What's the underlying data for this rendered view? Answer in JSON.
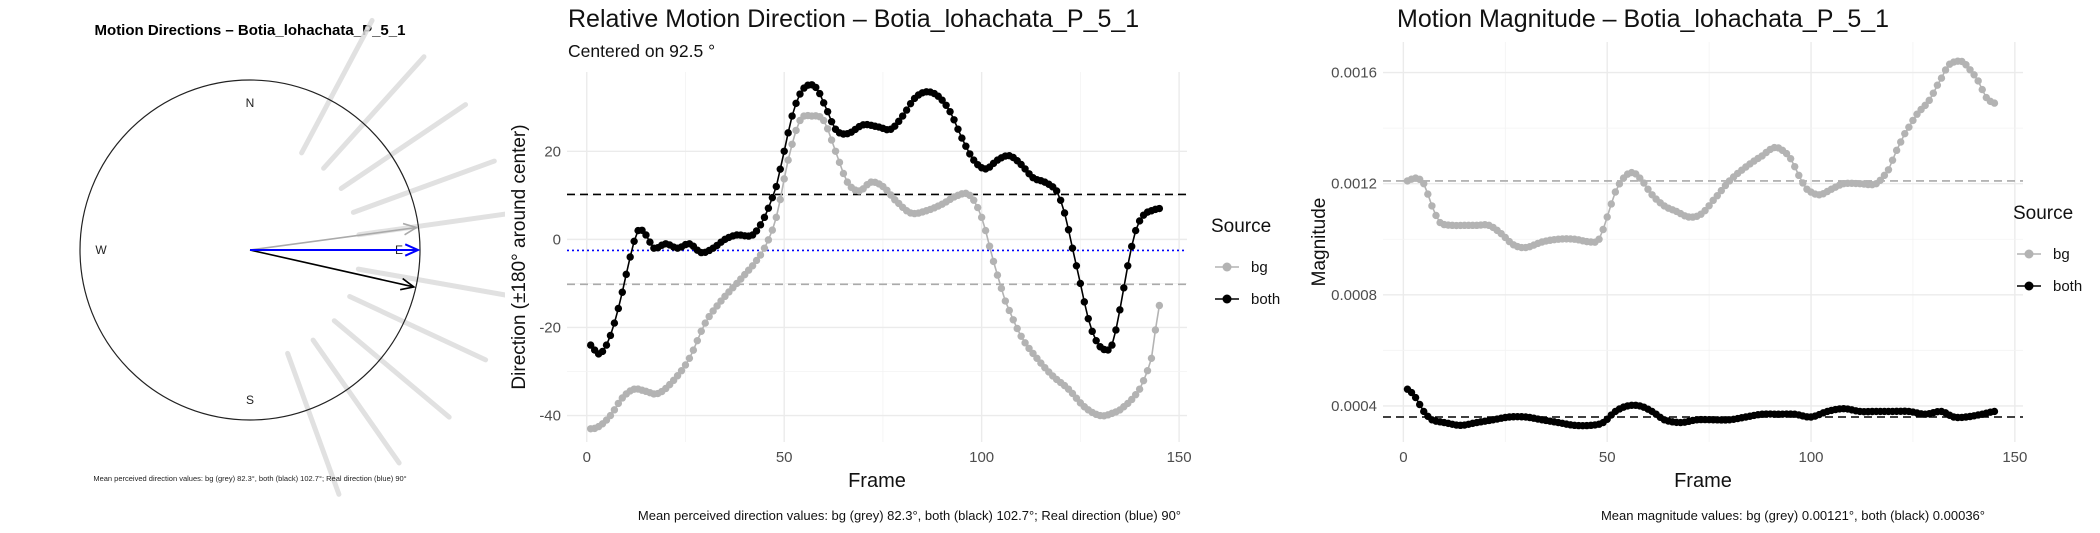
{
  "chart_data": [
    {
      "type": "compass",
      "title": "Motion Directions – Botia_lohachata_P_5_1",
      "labels": {
        "north": "N",
        "south": "S",
        "east": "E",
        "west": "W"
      },
      "caption": "Mean perceived direction values: bg (grey) 82.3°, both (black) 102.7°; Real direction (blue) 90°",
      "arrows": [
        {
          "name": "bg",
          "direction_deg": 82.3,
          "color": "#aaaaaa"
        },
        {
          "name": "both",
          "direction_deg": 102.7,
          "color": "#000000"
        },
        {
          "name": "real",
          "direction_deg": 90,
          "color": "#0000ff"
        }
      ],
      "faint_rays_deg": [
        28,
        42,
        56,
        70,
        82,
        100,
        115,
        130,
        145,
        160
      ]
    },
    {
      "type": "scatter",
      "title": "Relative Motion Direction – Botia_lohachata_P_5_1",
      "subtitle": "Centered on  92.5 °",
      "xlabel": "Frame",
      "ylabel": "Direction (±180° around center)",
      "xlim": [
        -5,
        152
      ],
      "ylim": [
        -46,
        38
      ],
      "xticks": [
        0,
        50,
        100,
        150
      ],
      "yticks": [
        -40,
        -20,
        0,
        20
      ],
      "legend": {
        "title": "Source",
        "position": "right",
        "entries": [
          "bg",
          "both"
        ]
      },
      "caption": "Mean perceived direction values: bg (grey) 82.3°, both (black) 102.7°; Real direction (blue) 90°",
      "hlines": [
        {
          "y": 10.2,
          "color": "#000000",
          "style": "dashed"
        },
        {
          "y": -2.5,
          "color": "#0000ff",
          "style": "dotted"
        },
        {
          "y": -10.2,
          "color": "#aaaaaa",
          "style": "dashed"
        }
      ],
      "series": [
        {
          "name": "bg",
          "color": "#b3b3b3",
          "keypoints": [
            [
              1,
              -43
            ],
            [
              3,
              -42.5
            ],
            [
              6,
              -40
            ],
            [
              9,
              -36
            ],
            [
              12,
              -34
            ],
            [
              15,
              -34.5
            ],
            [
              18,
              -35
            ],
            [
              22,
              -32
            ],
            [
              26,
              -27
            ],
            [
              30,
              -19
            ],
            [
              34,
              -14
            ],
            [
              38,
              -10
            ],
            [
              42,
              -6
            ],
            [
              45,
              -2
            ],
            [
              48,
              5
            ],
            [
              51,
              18
            ],
            [
              54,
              27
            ],
            [
              57,
              28
            ],
            [
              60,
              27
            ],
            [
              63,
              20
            ],
            [
              66,
              13
            ],
            [
              69,
              11
            ],
            [
              72,
              13
            ],
            [
              75,
              12
            ],
            [
              78,
              9
            ],
            [
              82,
              6
            ],
            [
              86,
              6.5
            ],
            [
              90,
              8
            ],
            [
              94,
              10
            ],
            [
              97,
              10
            ],
            [
              100,
              5
            ],
            [
              103,
              -5
            ],
            [
              106,
              -14
            ],
            [
              110,
              -22
            ],
            [
              114,
              -27
            ],
            [
              118,
              -31
            ],
            [
              122,
              -34
            ],
            [
              126,
              -38
            ],
            [
              130,
              -40
            ],
            [
              133,
              -39.5
            ],
            [
              136,
              -38
            ],
            [
              140,
              -34
            ],
            [
              143,
              -27
            ],
            [
              145,
              -15
            ]
          ]
        },
        {
          "name": "both",
          "color": "#000000",
          "keypoints": [
            [
              1,
              -24
            ],
            [
              3,
              -26
            ],
            [
              5,
              -24
            ],
            [
              7,
              -19
            ],
            [
              9,
              -12
            ],
            [
              11,
              -4
            ],
            [
              13,
              2
            ],
            [
              15,
              1
            ],
            [
              17,
              -2
            ],
            [
              20,
              -1
            ],
            [
              23,
              -2
            ],
            [
              26,
              -1
            ],
            [
              29,
              -3
            ],
            [
              32,
              -2
            ],
            [
              35,
              0
            ],
            [
              38,
              1
            ],
            [
              42,
              1
            ],
            [
              45,
              5
            ],
            [
              48,
              12
            ],
            [
              50,
              20
            ],
            [
              52,
              28
            ],
            [
              54,
              33
            ],
            [
              56,
              35
            ],
            [
              58,
              34.5
            ],
            [
              60,
              31
            ],
            [
              63,
              25
            ],
            [
              66,
              24
            ],
            [
              70,
              26
            ],
            [
              74,
              25.5
            ],
            [
              77,
              25
            ],
            [
              80,
              28
            ],
            [
              83,
              32
            ],
            [
              86,
              33.5
            ],
            [
              89,
              32.5
            ],
            [
              92,
              29
            ],
            [
              95,
              23
            ],
            [
              98,
              18
            ],
            [
              101,
              16
            ],
            [
              104,
              18
            ],
            [
              107,
              19
            ],
            [
              110,
              17
            ],
            [
              113,
              14
            ],
            [
              116,
              13
            ],
            [
              119,
              11
            ],
            [
              121,
              6
            ],
            [
              123,
              -2
            ],
            [
              125,
              -10
            ],
            [
              127,
              -18
            ],
            [
              129,
              -23
            ],
            [
              131,
              -25
            ],
            [
              133,
              -24
            ],
            [
              135,
              -16
            ],
            [
              137,
              -6
            ],
            [
              139,
              2
            ],
            [
              141,
              5.5
            ],
            [
              143,
              6.5
            ],
            [
              145,
              7
            ]
          ]
        }
      ]
    },
    {
      "type": "scatter",
      "title": "Motion Magnitude – Botia_lohachata_P_5_1",
      "xlabel": "Frame",
      "ylabel": "Magnitude",
      "xlim": [
        -5,
        152
      ],
      "ylim": [
        0.00027,
        0.00171
      ],
      "xticks": [
        0,
        50,
        100,
        150
      ],
      "yticks": [
        0.0004,
        0.0008,
        0.0012,
        0.0016
      ],
      "ytick_labels": [
        "0.0004",
        "0.0008",
        "0.0012",
        "0.0016"
      ],
      "legend": {
        "title": "Source",
        "position": "right",
        "entries": [
          "bg",
          "both"
        ]
      },
      "caption": "Mean magnitude values: bg (grey) 0.00121°, both (black) 0.00036°",
      "hlines": [
        {
          "y": 0.00121,
          "color": "#aaaaaa",
          "style": "dashed"
        },
        {
          "y": 0.00036,
          "color": "#000000",
          "style": "dashed"
        }
      ],
      "series": [
        {
          "name": "bg",
          "color": "#b3b3b3",
          "keypoints": [
            [
              1,
              0.00121
            ],
            [
              3,
              0.00122
            ],
            [
              5,
              0.0012
            ],
            [
              7,
              0.00112
            ],
            [
              9,
              0.00106
            ],
            [
              12,
              0.00105
            ],
            [
              15,
              0.00105
            ],
            [
              18,
              0.00105
            ],
            [
              21,
              0.00105
            ],
            [
              24,
              0.00102
            ],
            [
              27,
              0.00098
            ],
            [
              30,
              0.00097
            ],
            [
              34,
              0.00099
            ],
            [
              38,
              0.001
            ],
            [
              42,
              0.001
            ],
            [
              46,
              0.00099
            ],
            [
              48,
              0.001
            ],
            [
              50,
              0.00108
            ],
            [
              52,
              0.00117
            ],
            [
              54,
              0.00122
            ],
            [
              56,
              0.00124
            ],
            [
              58,
              0.00122
            ],
            [
              61,
              0.00116
            ],
            [
              64,
              0.00112
            ],
            [
              67,
              0.0011
            ],
            [
              70,
              0.00108
            ],
            [
              73,
              0.00109
            ],
            [
              76,
              0.00114
            ],
            [
              80,
              0.00121
            ],
            [
              84,
              0.00126
            ],
            [
              88,
              0.0013
            ],
            [
              91,
              0.00133
            ],
            [
              93,
              0.00132
            ],
            [
              95,
              0.00129
            ],
            [
              97,
              0.00123
            ],
            [
              99,
              0.00118
            ],
            [
              102,
              0.00116
            ],
            [
              105,
              0.00118
            ],
            [
              108,
              0.0012
            ],
            [
              112,
              0.0012
            ],
            [
              116,
              0.0012
            ],
            [
              119,
              0.00125
            ],
            [
              121,
              0.00132
            ],
            [
              123,
              0.00138
            ],
            [
              126,
              0.00145
            ],
            [
              129,
              0.0015
            ],
            [
              132,
              0.00158
            ],
            [
              134,
              0.00163
            ],
            [
              137,
              0.00164
            ],
            [
              139,
              0.00161
            ],
            [
              141,
              0.00157
            ],
            [
              143,
              0.00151
            ],
            [
              145,
              0.00149
            ]
          ]
        },
        {
          "name": "both",
          "color": "#000000",
          "keypoints": [
            [
              1,
              0.00046
            ],
            [
              3,
              0.00043
            ],
            [
              5,
              0.00038
            ],
            [
              7,
              0.00035
            ],
            [
              10,
              0.00034
            ],
            [
              14,
              0.00033
            ],
            [
              18,
              0.00034
            ],
            [
              22,
              0.00035
            ],
            [
              26,
              0.00036
            ],
            [
              30,
              0.00036
            ],
            [
              34,
              0.00035
            ],
            [
              38,
              0.00034
            ],
            [
              42,
              0.00033
            ],
            [
              46,
              0.00033
            ],
            [
              49,
              0.00034
            ],
            [
              52,
              0.00038
            ],
            [
              55,
              0.0004
            ],
            [
              58,
              0.0004
            ],
            [
              61,
              0.00038
            ],
            [
              64,
              0.00035
            ],
            [
              68,
              0.00034
            ],
            [
              72,
              0.00035
            ],
            [
              76,
              0.00035
            ],
            [
              80,
              0.00035
            ],
            [
              84,
              0.00036
            ],
            [
              88,
              0.00037
            ],
            [
              92,
              0.00037
            ],
            [
              96,
              0.00037
            ],
            [
              100,
              0.00036
            ],
            [
              104,
              0.00038
            ],
            [
              108,
              0.00039
            ],
            [
              112,
              0.00038
            ],
            [
              116,
              0.00038
            ],
            [
              120,
              0.00038
            ],
            [
              124,
              0.00038
            ],
            [
              128,
              0.00037
            ],
            [
              132,
              0.00038
            ],
            [
              135,
              0.00036
            ],
            [
              138,
              0.00036
            ],
            [
              142,
              0.00037
            ],
            [
              145,
              0.00038
            ]
          ]
        }
      ]
    }
  ]
}
